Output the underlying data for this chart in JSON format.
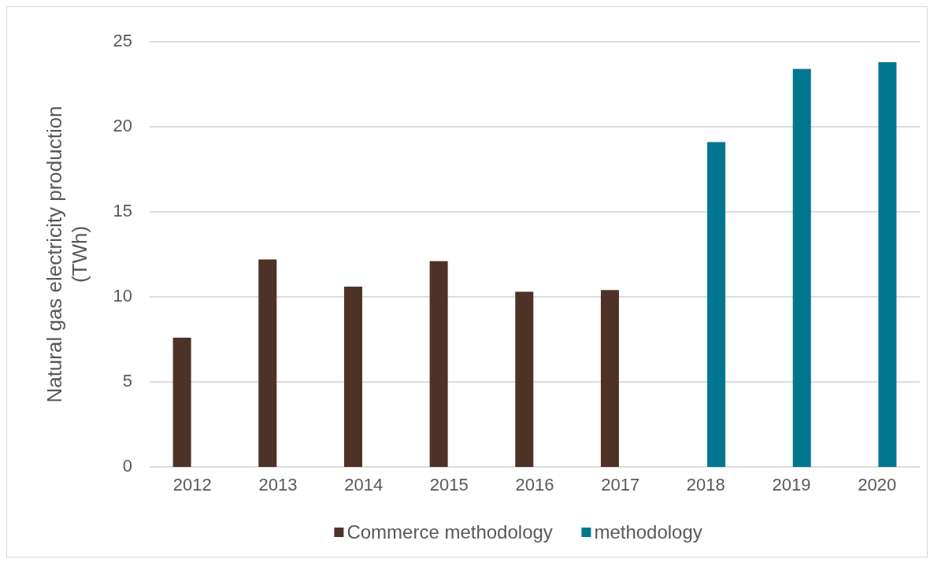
{
  "chart_data": {
    "type": "bar",
    "ylabel": "Natural gas electricity production (TWh)",
    "categories": [
      "2012",
      "2013",
      "2014",
      "2015",
      "2016",
      "2017",
      "2018",
      "2019",
      "2020"
    ],
    "series": [
      {
        "name": "Commerce methodology",
        "color": "#4e3127",
        "values": [
          7.6,
          12.2,
          10.6,
          12.1,
          10.3,
          10.4,
          null,
          null,
          null
        ]
      },
      {
        "name": "methodology",
        "color": "#007690",
        "values": [
          null,
          null,
          null,
          null,
          null,
          null,
          19.1,
          23.4,
          23.8
        ]
      }
    ],
    "ylim": [
      0,
      25
    ],
    "yticks": [
      0,
      5,
      10,
      15,
      20,
      25
    ],
    "grid": "y",
    "legend": "bottom"
  }
}
